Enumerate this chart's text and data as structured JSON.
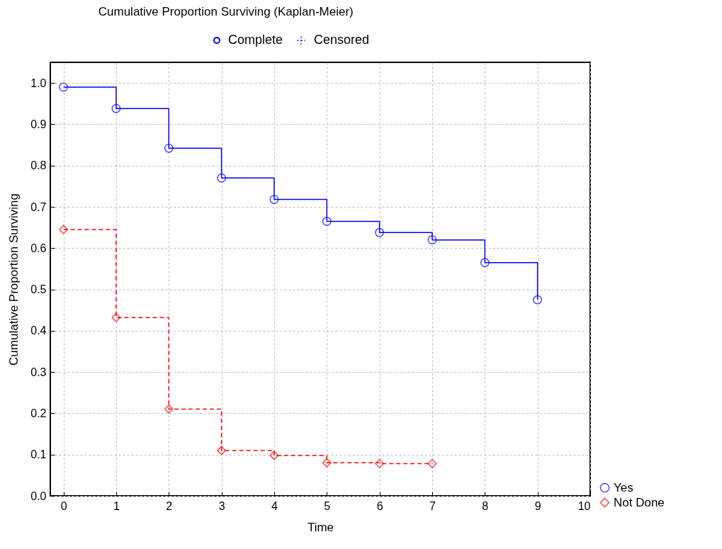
{
  "chart_data": {
    "type": "step",
    "title": "Cumulative Proportion Surviving (Kaplan-Meier)",
    "xlabel": "Time",
    "ylabel": "Cumulative Proportion Surviving",
    "annotations": [
      "Complete",
      "Censored"
    ],
    "series": [
      {
        "name": "Yes",
        "color": "#0000ff",
        "marker": "circle",
        "line_style": "solid",
        "x": [
          0,
          1,
          2,
          3,
          4,
          5,
          6,
          7,
          8,
          9
        ],
        "values": [
          0.99,
          0.938,
          0.842,
          0.77,
          0.718,
          0.665,
          0.638,
          0.62,
          0.565,
          0.475
        ]
      },
      {
        "name": "Not Done",
        "color": "#ff0000",
        "marker": "diamond",
        "line_style": "dashed",
        "x": [
          0,
          1,
          2,
          3,
          4,
          5,
          6,
          7
        ],
        "values": [
          0.645,
          0.432,
          0.21,
          0.11,
          0.098,
          0.08,
          0.078,
          0.078
        ]
      }
    ],
    "xlim": [
      -0.25,
      10
    ],
    "xticks": [
      0,
      1,
      2,
      3,
      4,
      5,
      6,
      7,
      8,
      9,
      10
    ],
    "ylim": [
      0,
      1.05
    ],
    "yticks": [
      {
        "value": 0,
        "label": "0.0"
      },
      0.1,
      0.2,
      0.3,
      0.4,
      0.5,
      0.6,
      0.7,
      0.8,
      0.9,
      {
        "value": 1,
        "label": "1.0"
      }
    ],
    "grid": true,
    "legend": "bottom right"
  }
}
